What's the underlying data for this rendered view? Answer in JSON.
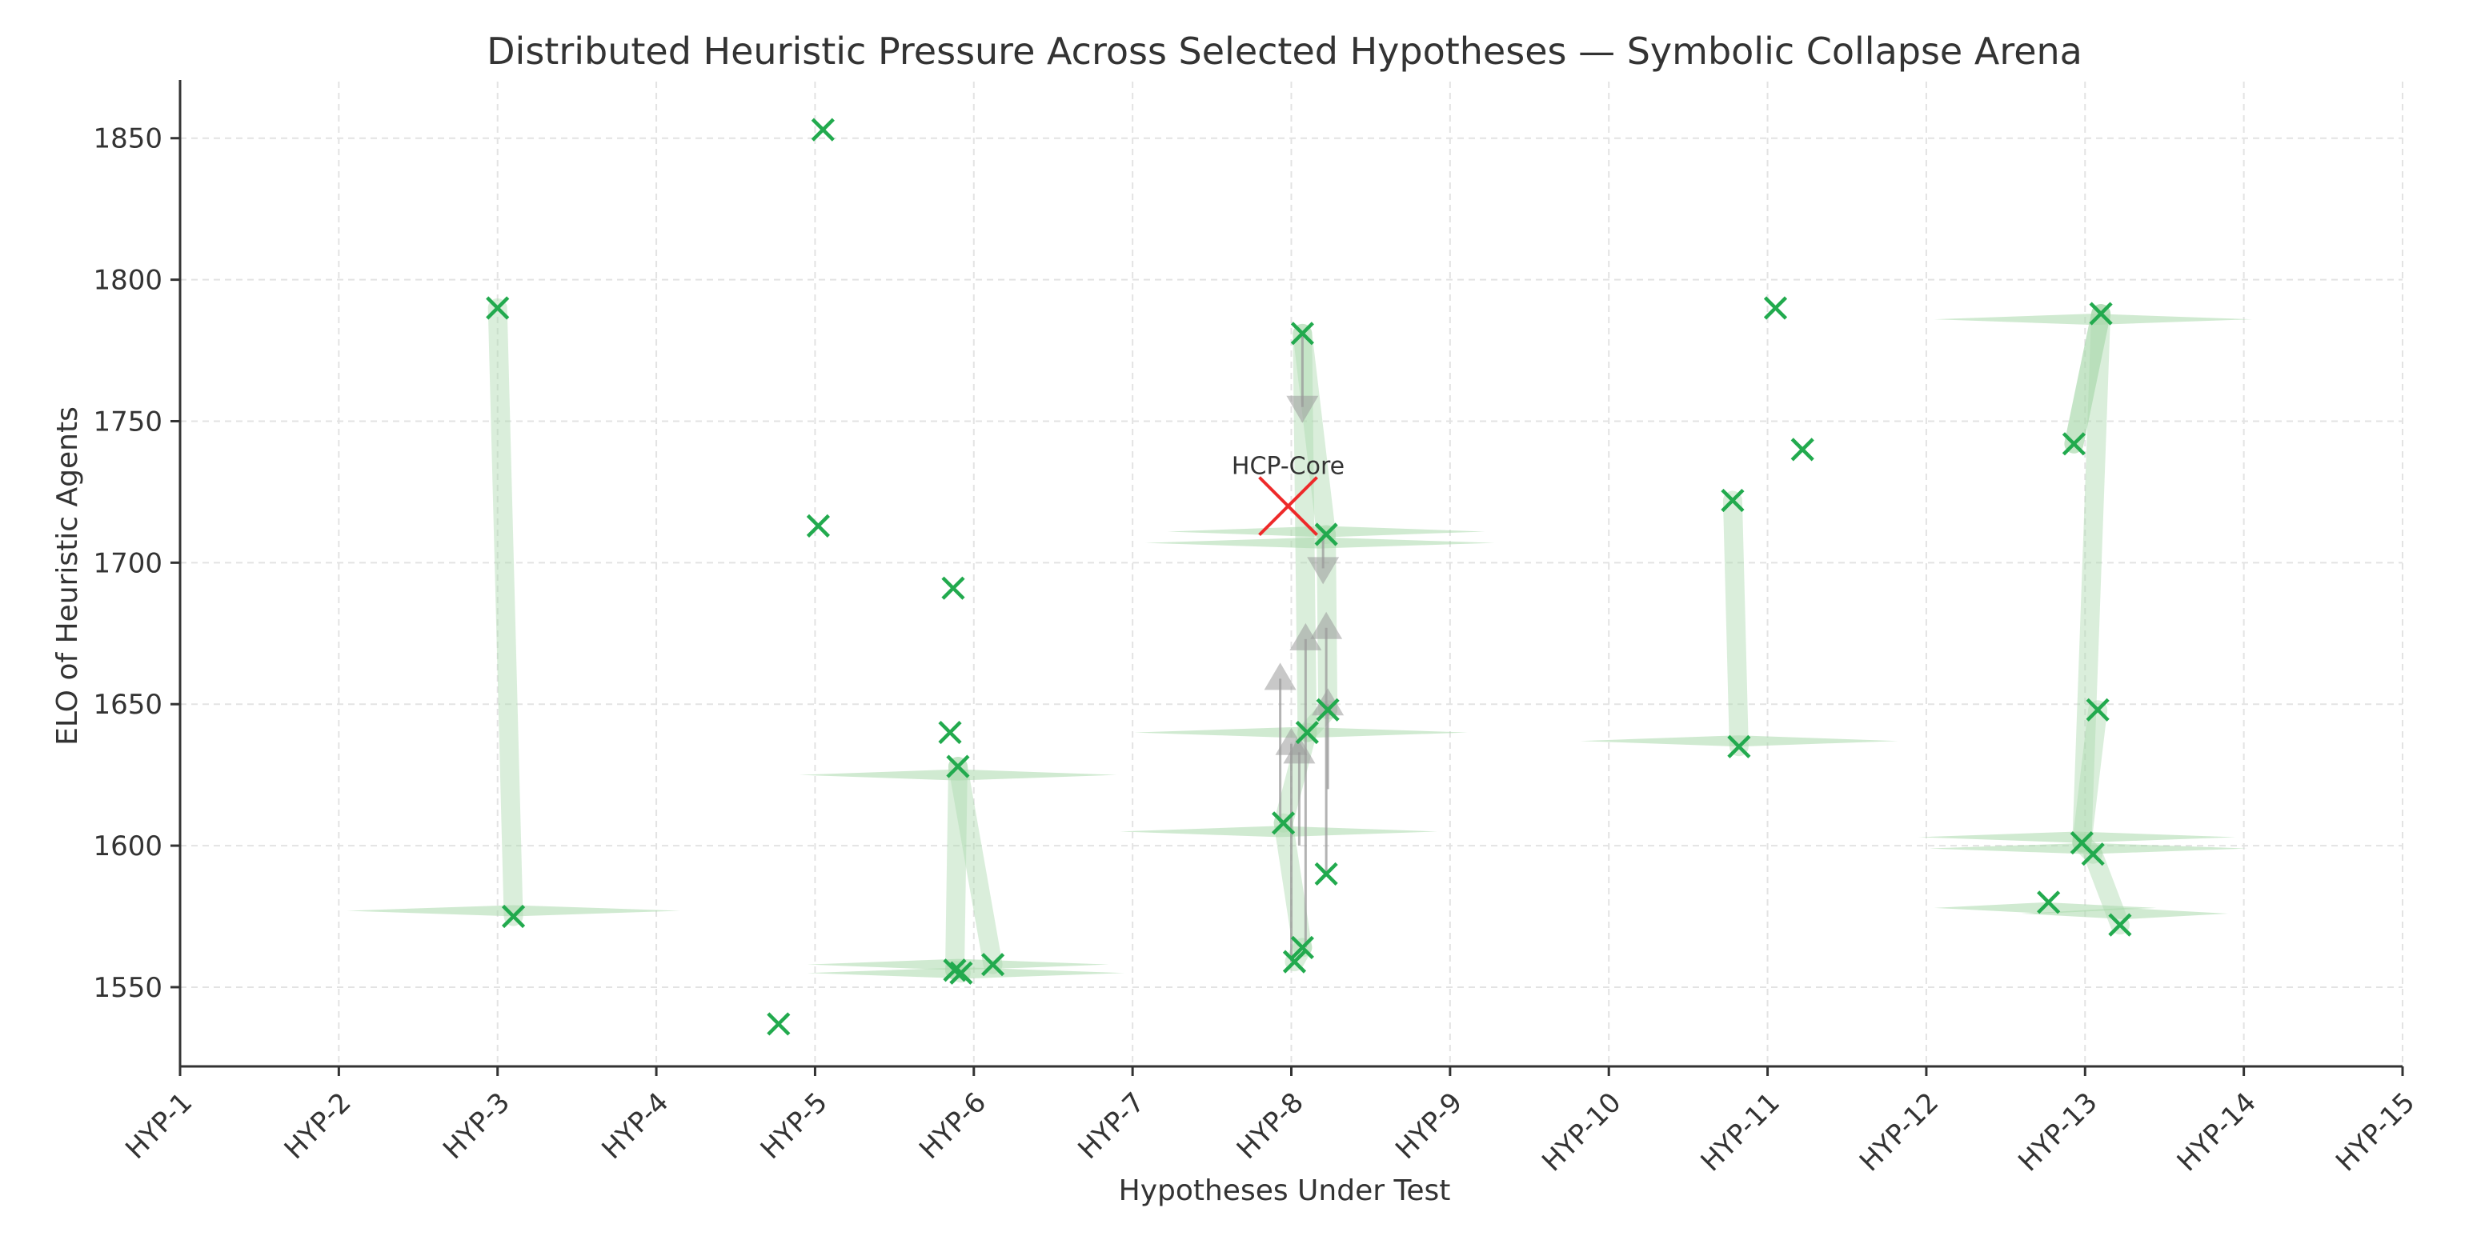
{
  "chart_data": {
    "type": "scatter",
    "title": "Distributed Heuristic Pressure Across Selected Hypotheses — Symbolic Collapse Arena",
    "xlabel": "Hypotheses Under Test",
    "ylabel": "ELO of Heuristic Agents",
    "categories": [
      "HYP-1",
      "HYP-2",
      "HYP-3",
      "HYP-4",
      "HYP-5",
      "HYP-6",
      "HYP-7",
      "HYP-8",
      "HYP-9",
      "HYP-10",
      "HYP-11",
      "HYP-12",
      "HYP-13",
      "HYP-14",
      "HYP-15"
    ],
    "xlim": [
      1,
      15
    ],
    "ylim": [
      1522,
      1870
    ],
    "yticks": [
      1550,
      1600,
      1650,
      1700,
      1750,
      1800,
      1850
    ],
    "grid": true,
    "colors": {
      "agent": "#22aa4e",
      "core": "#ee2a2a",
      "band": "#a9d9ac",
      "arrow": "#9a9a9a"
    },
    "agents": [
      {
        "x": 3.0,
        "y": 1790
      },
      {
        "x": 3.1,
        "y": 1575
      },
      {
        "x": 5.05,
        "y": 1853
      },
      {
        "x": 5.02,
        "y": 1713
      },
      {
        "x": 4.77,
        "y": 1537
      },
      {
        "x": 5.87,
        "y": 1691
      },
      {
        "x": 5.85,
        "y": 1640
      },
      {
        "x": 5.9,
        "y": 1628
      },
      {
        "x": 5.88,
        "y": 1556
      },
      {
        "x": 5.92,
        "y": 1555
      },
      {
        "x": 6.12,
        "y": 1558
      },
      {
        "x": 8.07,
        "y": 1781
      },
      {
        "x": 8.22,
        "y": 1710
      },
      {
        "x": 8.23,
        "y": 1648
      },
      {
        "x": 8.1,
        "y": 1640
      },
      {
        "x": 7.95,
        "y": 1608
      },
      {
        "x": 8.22,
        "y": 1590
      },
      {
        "x": 8.07,
        "y": 1564
      },
      {
        "x": 8.02,
        "y": 1559
      },
      {
        "x": 11.05,
        "y": 1790
      },
      {
        "x": 11.22,
        "y": 1740
      },
      {
        "x": 10.78,
        "y": 1722
      },
      {
        "x": 10.82,
        "y": 1635
      },
      {
        "x": 13.1,
        "y": 1788
      },
      {
        "x": 12.93,
        "y": 1742
      },
      {
        "x": 13.08,
        "y": 1648
      },
      {
        "x": 12.98,
        "y": 1601
      },
      {
        "x": 13.05,
        "y": 1597
      },
      {
        "x": 12.77,
        "y": 1580
      },
      {
        "x": 13.22,
        "y": 1572
      }
    ],
    "links": [
      [
        0,
        1
      ],
      [
        7,
        8
      ],
      [
        7,
        10
      ],
      [
        8,
        9
      ],
      [
        11,
        12
      ],
      [
        12,
        13
      ],
      [
        13,
        14
      ],
      [
        14,
        15
      ],
      [
        15,
        17
      ],
      [
        17,
        18
      ],
      [
        11,
        14
      ],
      [
        21,
        22
      ],
      [
        23,
        24
      ],
      [
        23,
        26
      ],
      [
        26,
        27
      ],
      [
        27,
        29
      ],
      [
        25,
        26
      ],
      [
        24,
        23
      ]
    ],
    "wedges": [
      {
        "x": 3.1,
        "y": 1577,
        "w": 2.1
      },
      {
        "x": 5.9,
        "y": 1625,
        "w": 2.0
      },
      {
        "x": 5.9,
        "y": 1558,
        "w": 1.9
      },
      {
        "x": 5.95,
        "y": 1555,
        "w": 2.0
      },
      {
        "x": 8.22,
        "y": 1711,
        "w": 2.0
      },
      {
        "x": 8.18,
        "y": 1707,
        "w": 2.2
      },
      {
        "x": 8.06,
        "y": 1640,
        "w": 2.1
      },
      {
        "x": 7.92,
        "y": 1605,
        "w": 2.0
      },
      {
        "x": 10.82,
        "y": 1637,
        "w": 2.0
      },
      {
        "x": 13.05,
        "y": 1786,
        "w": 2.0
      },
      {
        "x": 12.95,
        "y": 1603,
        "w": 2.0
      },
      {
        "x": 13.02,
        "y": 1599,
        "w": 2.0
      },
      {
        "x": 12.75,
        "y": 1578,
        "w": 1.4
      },
      {
        "x": 13.25,
        "y": 1576,
        "w": 1.3
      }
    ],
    "arrows": [
      {
        "x": 8.07,
        "y1": 1781,
        "y2": 1755,
        "dir": "down"
      },
      {
        "x": 8.2,
        "y1": 1710,
        "y2": 1698,
        "dir": "down"
      },
      {
        "x": 7.93,
        "y1": 1608,
        "y2": 1659,
        "dir": "up"
      },
      {
        "x": 8.22,
        "y1": 1590,
        "y2": 1677,
        "dir": "up"
      },
      {
        "x": 8.09,
        "y1": 1564,
        "y2": 1673,
        "dir": "up"
      },
      {
        "x": 8.0,
        "y1": 1559,
        "y2": 1636,
        "dir": "up"
      },
      {
        "x": 8.05,
        "y1": 1600,
        "y2": 1633,
        "dir": "up"
      },
      {
        "x": 8.23,
        "y1": 1620,
        "y2": 1650,
        "dir": "up"
      }
    ],
    "core": {
      "x": 7.98,
      "y": 1720,
      "label": "HCP-Core"
    }
  }
}
